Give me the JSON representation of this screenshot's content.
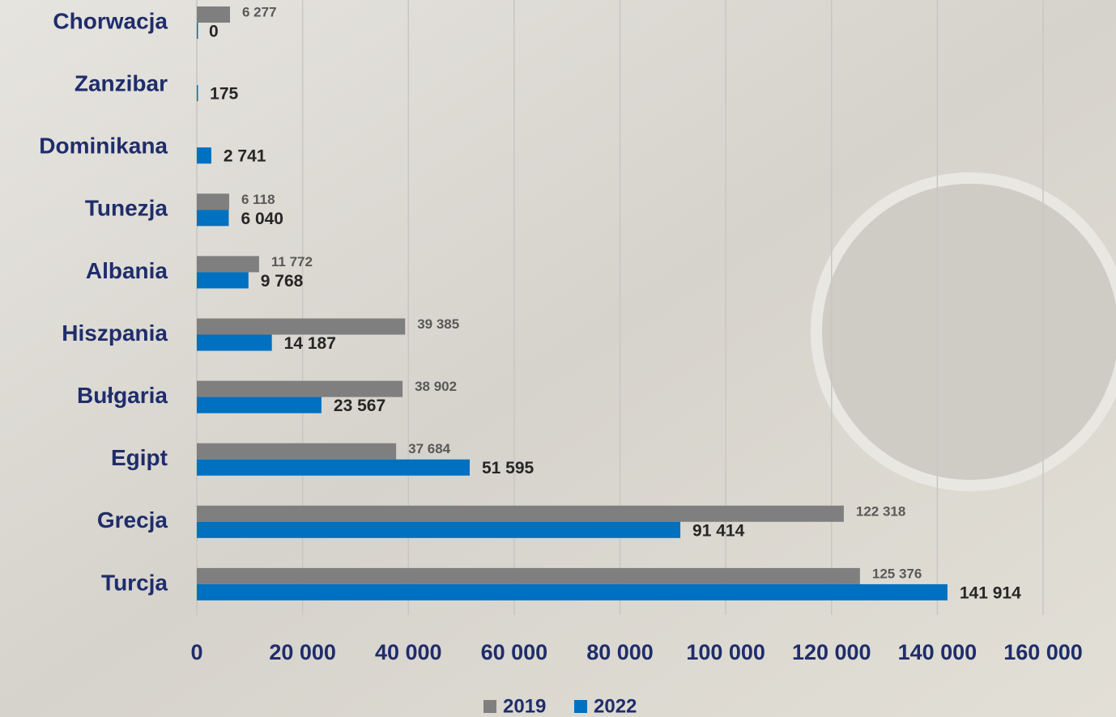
{
  "chart_data": {
    "type": "hbar",
    "categories": [
      "Chorwacja",
      "Zanzibar",
      "Dominikana",
      "Tunezja",
      "Albania",
      "Hiszpania",
      "Bułgaria",
      "Egipt",
      "Grecja",
      "Turcja"
    ],
    "series": [
      {
        "name": "2019",
        "color": "#7f7f7f",
        "values": [
          6277,
          null,
          null,
          6118,
          11772,
          39385,
          38902,
          37684,
          122318,
          125376
        ],
        "value_labels": [
          "6 277",
          null,
          null,
          "6 118",
          "11 772",
          "39 385",
          "38 902",
          "37 684",
          "122 318",
          "125 376"
        ]
      },
      {
        "name": "2022",
        "color": "#0070c0",
        "values": [
          0,
          175,
          2741,
          6040,
          9768,
          14187,
          23567,
          51595,
          91414,
          141914
        ],
        "value_labels": [
          "0",
          "175",
          "2 741",
          "6 040",
          "9 768",
          "14 187",
          "23 567",
          "51 595",
          "91 414",
          "141 914"
        ]
      }
    ],
    "xlim": [
      0,
      160000
    ],
    "xticks": [
      0,
      {
        "value": 20000,
        "label": "20 000"
      },
      {
        "value": 40000,
        "label": "40 000"
      },
      {
        "value": 60000,
        "label": "60 000"
      },
      {
        "value": 80000,
        "label": "80 000"
      },
      {
        "value": 100000,
        "label": "100 000"
      },
      {
        "value": 120000,
        "label": "120 000"
      },
      {
        "value": 140000,
        "label": "140 000"
      },
      {
        "value": 160000,
        "label": "160 000"
      }
    ],
    "grid": true,
    "legend": "bottom"
  }
}
